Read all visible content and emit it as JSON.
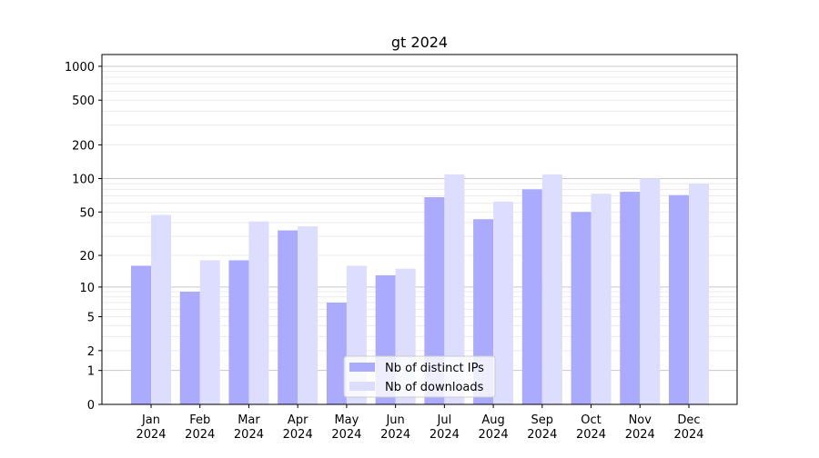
{
  "chart_data": {
    "type": "bar",
    "title": "gt 2024",
    "xlabel": "",
    "ylabel": "",
    "yscale": "symlog (log10(y+1))",
    "ylim": [
      0,
      1270
    ],
    "yticks": [
      0,
      1,
      2,
      5,
      10,
      20,
      50,
      100,
      200,
      500,
      1000
    ],
    "grid": true,
    "legend_position": "bottom-center",
    "categories": [
      "Jan\n2024",
      "Feb\n2024",
      "Mar\n2024",
      "Apr\n2024",
      "May\n2024",
      "Jun\n2024",
      "Jul\n2024",
      "Aug\n2024",
      "Sep\n2024",
      "Oct\n2024",
      "Nov\n2024",
      "Dec\n2024"
    ],
    "series": [
      {
        "name": "Nb of distinct IPs",
        "color": "#aaaaff",
        "values": [
          16,
          9,
          18,
          34,
          7,
          13,
          68,
          43,
          80,
          50,
          76,
          71
        ]
      },
      {
        "name": "Nb of downloads",
        "color": "#ddddff",
        "values": [
          47,
          18,
          41,
          37,
          16,
          15,
          109,
          62,
          109,
          73,
          100,
          90
        ]
      }
    ]
  }
}
